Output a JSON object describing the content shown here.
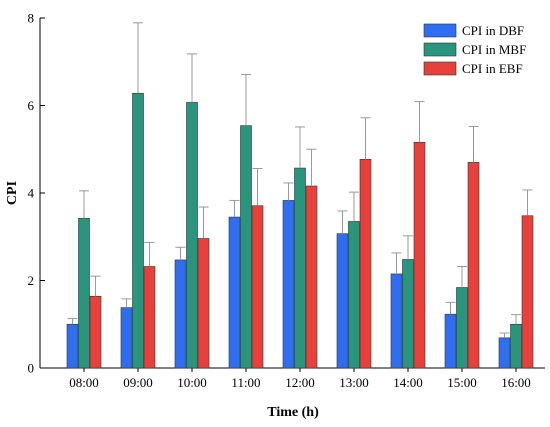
{
  "chart_data": {
    "type": "bar",
    "xlabel": "Time (h)",
    "ylabel": "CPI",
    "ylim": [
      0,
      8
    ],
    "yticks": [
      0,
      2,
      4,
      6,
      8
    ],
    "grid": false,
    "legend_position": "top-right",
    "error_bars": true,
    "categories": [
      "08:00",
      "09:00",
      "10:00",
      "11:00",
      "12:00",
      "13:00",
      "14:00",
      "15:00",
      "16:00"
    ],
    "series": [
      {
        "name": "CPI in DBF",
        "color": "#2f6ef0",
        "values": [
          1.0,
          1.38,
          2.47,
          3.45,
          3.83,
          3.07,
          2.15,
          1.23,
          0.69
        ],
        "errors": [
          0.13,
          0.2,
          0.29,
          0.38,
          0.4,
          0.52,
          0.48,
          0.27,
          0.11
        ]
      },
      {
        "name": "CPI in MBF",
        "color": "#28957c",
        "values": [
          3.42,
          6.28,
          6.07,
          5.54,
          4.57,
          3.35,
          2.48,
          1.84,
          1.0
        ],
        "errors": [
          0.63,
          1.61,
          1.11,
          1.17,
          0.94,
          0.67,
          0.54,
          0.48,
          0.22
        ]
      },
      {
        "name": "CPI in EBF",
        "color": "#e8403a",
        "values": [
          1.64,
          2.32,
          2.96,
          3.71,
          4.16,
          4.77,
          5.16,
          4.7,
          3.48
        ],
        "errors": [
          0.46,
          0.55,
          0.72,
          0.85,
          0.84,
          0.95,
          0.93,
          0.82,
          0.59
        ]
      }
    ]
  }
}
